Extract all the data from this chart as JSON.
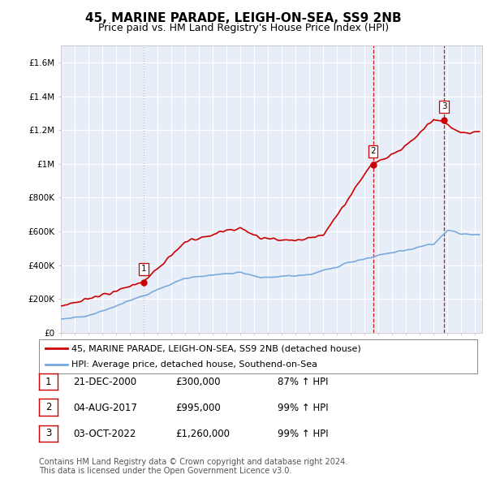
{
  "title": "45, MARINE PARADE, LEIGH-ON-SEA, SS9 2NB",
  "subtitle": "Price paid vs. HM Land Registry's House Price Index (HPI)",
  "title_fontsize": 11,
  "subtitle_fontsize": 9,
  "background_color": "#ffffff",
  "plot_bg_color": "#e8eef8",
  "grid_color": "#ffffff",
  "ylim": [
    0,
    1700000
  ],
  "yticks": [
    0,
    200000,
    400000,
    600000,
    800000,
    1000000,
    1200000,
    1400000,
    1600000
  ],
  "ytick_labels": [
    "£0",
    "£200K",
    "£400K",
    "£600K",
    "£800K",
    "£1M",
    "£1.2M",
    "£1.4M",
    "£1.6M"
  ],
  "xmin": 1995.0,
  "xmax": 2025.5,
  "sales": [
    {
      "year": 2001.0,
      "price": 300000,
      "label": "1",
      "vline_color": "#aaaaaa",
      "vline_style": "dotted"
    },
    {
      "year": 2017.6,
      "price": 995000,
      "label": "2",
      "vline_color": "#cc0000",
      "vline_style": "dashed"
    },
    {
      "year": 2022.75,
      "price": 1260000,
      "label": "3",
      "vline_color": "#cc0000",
      "vline_style": "dashed"
    }
  ],
  "sale_dot_color": "#cc0000",
  "hpi_line_color": "#7aaadd",
  "price_line_color": "#cc0000",
  "legend_entries": [
    "45, MARINE PARADE, LEIGH-ON-SEA, SS9 2NB (detached house)",
    "HPI: Average price, detached house, Southend-on-Sea"
  ],
  "table_rows": [
    {
      "num": "1",
      "date": "21-DEC-2000",
      "price": "£300,000",
      "hpi": "87% ↑ HPI"
    },
    {
      "num": "2",
      "date": "04-AUG-2017",
      "price": "£995,000",
      "hpi": "99% ↑ HPI"
    },
    {
      "num": "3",
      "date": "03-OCT-2022",
      "price": "£1,260,000",
      "hpi": "99% ↑ HPI"
    }
  ],
  "footer": "Contains HM Land Registry data © Crown copyright and database right 2024.\nThis data is licensed under the Open Government Licence v3.0."
}
